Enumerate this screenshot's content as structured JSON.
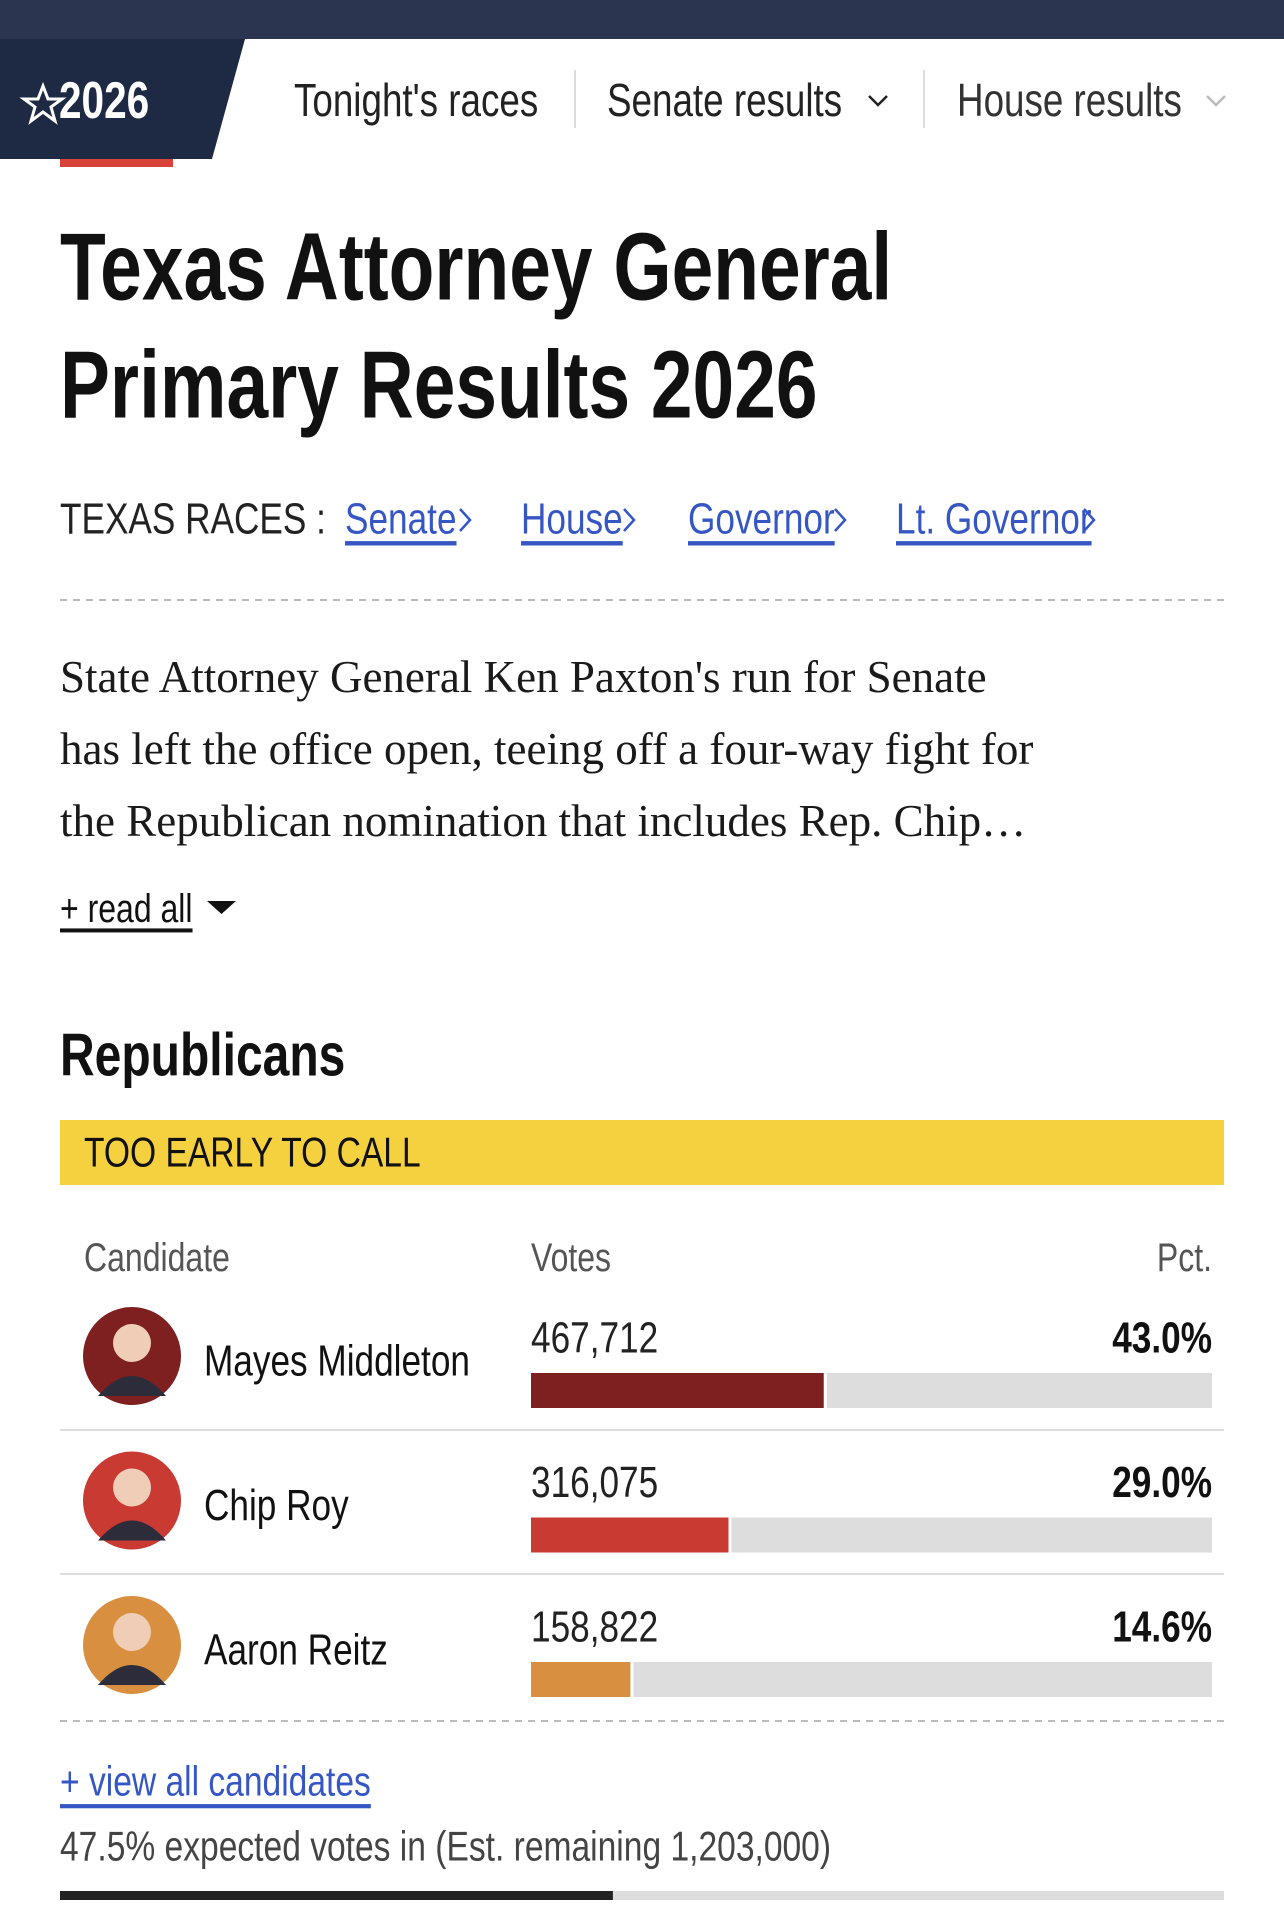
{
  "nav": {
    "logo": "2026",
    "items": [
      "Tonight's races",
      "Senate results",
      "House results"
    ]
  },
  "title": [
    "Texas Attorney General",
    "Primary Results 2026"
  ],
  "races": {
    "label": "TEXAS RACES :",
    "links": [
      "Senate",
      "House",
      "Governor",
      "Lt. Governor"
    ]
  },
  "description": [
    "State Attorney General Ken Paxton's run for Senate",
    "has left the office open, teeing off a four-way fight for",
    "the Republican nomination that includes Rep. Chip…"
  ],
  "read_all": "+ read all",
  "section": "Republicans",
  "status": "TOO EARLY TO CALL",
  "table": {
    "headers": [
      "Candidate",
      "Votes",
      "Pct."
    ],
    "rows": [
      {
        "name": "Mayes Middleton",
        "votes": "467,712",
        "pct": 43.0,
        "pct_label": "43.0%",
        "color": "#7f2020"
      },
      {
        "name": "Chip Roy",
        "votes": "316,075",
        "pct": 29.0,
        "pct_label": "29.0%",
        "color": "#c93a33"
      },
      {
        "name": "Aaron Reitz",
        "votes": "158,822",
        "pct": 14.6,
        "pct_label": "14.6%",
        "color": "#d89040"
      }
    ]
  },
  "view_all": "+ view all candidates",
  "reporting": {
    "text": "47.5% expected votes in (Est. remaining 1,203,000)",
    "value": 47.5
  }
}
